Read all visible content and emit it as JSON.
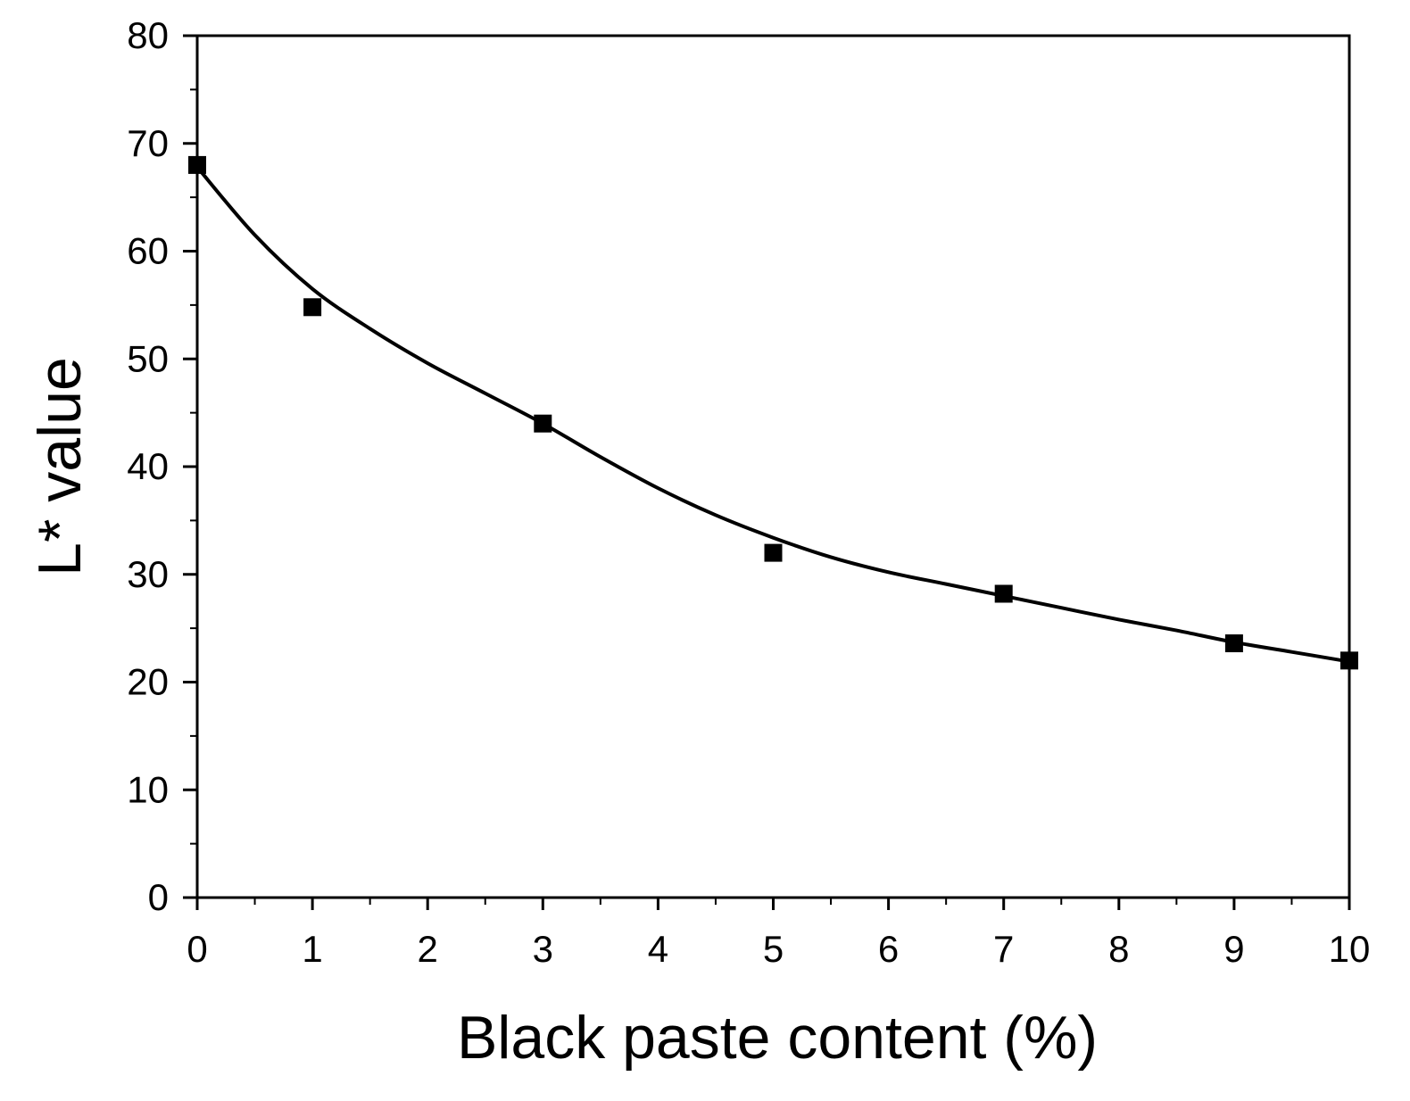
{
  "chart_data": {
    "type": "scatter",
    "title": "",
    "xlabel": "Black paste content (%)",
    "ylabel": "L* value",
    "xlim": [
      0,
      10
    ],
    "ylim": [
      0,
      80
    ],
    "x_ticks": [
      0,
      1,
      2,
      3,
      4,
      5,
      6,
      7,
      8,
      9,
      10
    ],
    "y_ticks": [
      0,
      10,
      20,
      30,
      40,
      50,
      60,
      70,
      80
    ],
    "x_tick_labels": [
      "0",
      "1",
      "2",
      "3",
      "4",
      "5",
      "6",
      "7",
      "8",
      "9",
      "10"
    ],
    "y_tick_labels": [
      "0",
      "10",
      "20",
      "30",
      "40",
      "50",
      "60",
      "70",
      "80"
    ],
    "grid": false,
    "legend": "none",
    "series": [
      {
        "kind": "points",
        "marker": "square",
        "color": "#000000",
        "x": [
          0,
          1,
          3,
          5,
          7,
          9,
          10
        ],
        "y": [
          68,
          54.8,
          44,
          32,
          28.2,
          23.6,
          22
        ]
      },
      {
        "kind": "fit-curve",
        "color": "#000000",
        "x": [
          0,
          0.5,
          1,
          1.5,
          2,
          2.5,
          3,
          3.5,
          4,
          4.5,
          5,
          5.5,
          6,
          6.5,
          7,
          7.5,
          8,
          8.5,
          9,
          9.5,
          10
        ],
        "y": [
          67.8,
          61.5,
          56.5,
          52.8,
          49.6,
          46.8,
          44.0,
          40.9,
          38.0,
          35.5,
          33.4,
          31.6,
          30.2,
          29.1,
          28.0,
          26.9,
          25.8,
          24.8,
          23.7,
          22.8,
          21.9
        ]
      }
    ]
  }
}
